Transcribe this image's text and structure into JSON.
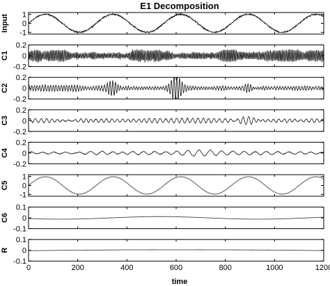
{
  "chart_data": {
    "type": "line",
    "title": "E1 Decomposition",
    "xlabel": "time",
    "xlim": [
      0,
      1200
    ],
    "xticks": [
      "0",
      "200",
      "400",
      "600",
      "800",
      "1000",
      "1200"
    ],
    "grid": false,
    "legend": "none",
    "panels": [
      {
        "label": "Input",
        "ylim": [
          -1.2,
          1.2
        ],
        "yticks": [
          "1",
          "0",
          "-1"
        ],
        "signal": {
          "kind": "sine_plus_noise",
          "amplitude": 1.0,
          "period": 275,
          "phase_deg": 0,
          "noise_amplitude": 0.12
        }
      },
      {
        "label": "C1",
        "ylim": [
          -0.2,
          0.2
        ],
        "yticks": [
          "0.2",
          "0",
          "-0.2"
        ],
        "signal": {
          "kind": "noise",
          "dominant_period": 6,
          "amplitude": 0.09
        }
      },
      {
        "label": "C2",
        "ylim": [
          -0.2,
          0.2
        ],
        "yticks": [
          "0.2",
          "0",
          "-0.2"
        ],
        "signal": {
          "kind": "noise",
          "dominant_period": 11,
          "amplitude": 0.05,
          "bursts": [
            {
              "time": 340,
              "amplitude": 0.13
            },
            {
              "time": 600,
              "amplitude": 0.19
            },
            {
              "time": 890,
              "amplitude": 0.09
            }
          ]
        }
      },
      {
        "label": "C3",
        "ylim": [
          -0.2,
          0.2
        ],
        "yticks": [
          "0.2",
          "0",
          "-0.2"
        ],
        "signal": {
          "kind": "noise",
          "dominant_period": 22,
          "amplitude": 0.035,
          "bursts": [
            {
              "time": 230,
              "amplitude": 0.06
            },
            {
              "time": 890,
              "amplitude": 0.11
            }
          ]
        }
      },
      {
        "label": "C4",
        "ylim": [
          -0.2,
          0.2
        ],
        "yticks": [
          "0.2",
          "0",
          "-0.2"
        ],
        "signal": {
          "kind": "noise",
          "dominant_period": 45,
          "amplitude": 0.025,
          "bursts": [
            {
              "time": 290,
              "amplitude": 0.04
            },
            {
              "time": 680,
              "amplitude": 0.04
            }
          ]
        }
      },
      {
        "label": "C5",
        "ylim": [
          -1.2,
          1.2
        ],
        "yticks": [
          "1",
          "0",
          "-1"
        ],
        "signal": {
          "kind": "sine_plus_noise",
          "amplitude": 0.97,
          "period": 275,
          "phase_deg": 0,
          "noise_amplitude": 0.04
        }
      },
      {
        "label": "C6",
        "ylim": [
          -0.1,
          0.1
        ],
        "yticks": [
          "0.1",
          "0",
          "-0.1"
        ],
        "signal": {
          "kind": "slow_wave",
          "amplitude": 0.012,
          "period": 800,
          "phase_deg": 210,
          "offset": 0.0
        }
      },
      {
        "label": "R",
        "ylim": [
          -0.1,
          0.1
        ],
        "yticks": [
          "0.1",
          "0",
          "-0.1"
        ],
        "signal": {
          "kind": "trend",
          "values": [
            -0.003,
            0.001,
            0.004,
            0.005,
            0.004,
            0.002,
            -0.002
          ]
        }
      }
    ]
  }
}
